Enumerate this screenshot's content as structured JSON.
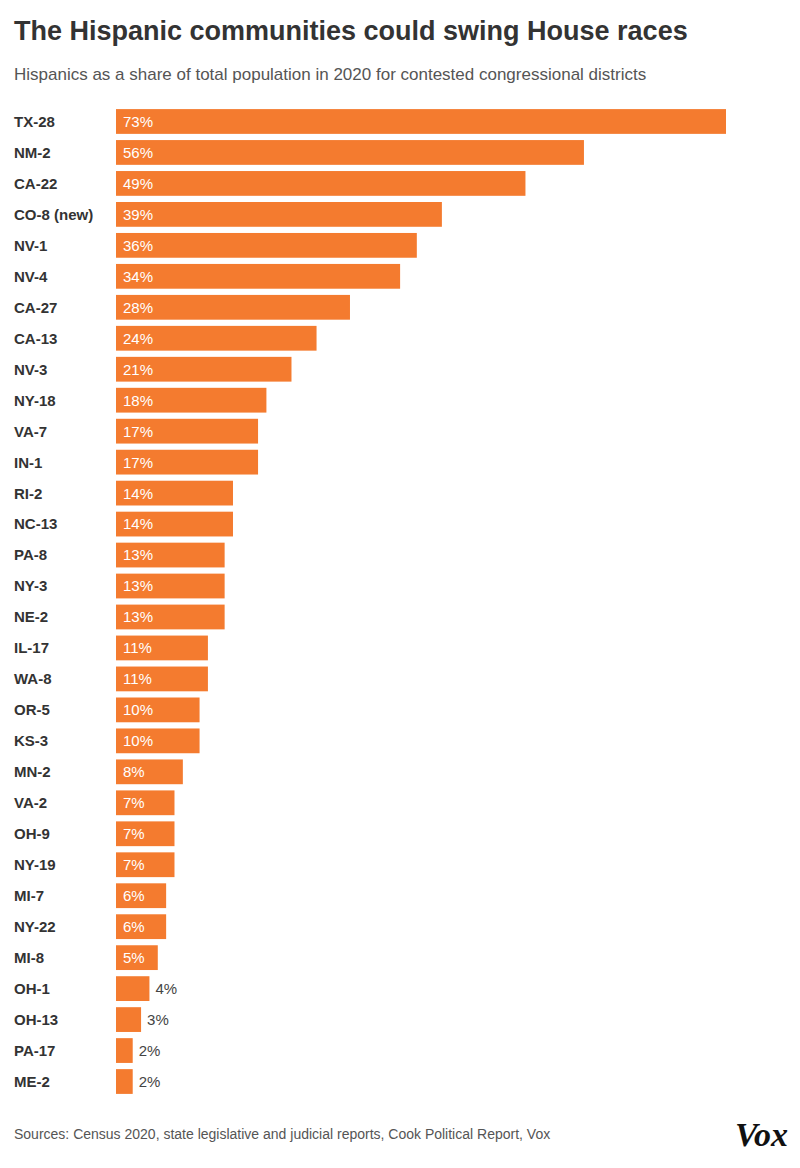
{
  "chart_data": {
    "type": "bar",
    "orientation": "horizontal",
    "title": "The Hispanic communities could swing House races",
    "subtitle": "Hispanics as a share of total population in 2020 for contested congressional districts",
    "categories": [
      "TX-28",
      "NM-2",
      "CA-22",
      "CO-8 (new)",
      "NV-1",
      "NV-4",
      "CA-27",
      "CA-13",
      "NV-3",
      "NY-18",
      "VA-7",
      "IN-1",
      "RI-2",
      "NC-13",
      "PA-8",
      "NY-3",
      "NE-2",
      "IL-17",
      "WA-8",
      "OR-5",
      "KS-3",
      "MN-2",
      "VA-2",
      "OH-9",
      "NY-19",
      "MI-7",
      "NY-22",
      "MI-8",
      "OH-1",
      "OH-13",
      "PA-17",
      "ME-2"
    ],
    "values": [
      73,
      56,
      49,
      39,
      36,
      34,
      28,
      24,
      21,
      18,
      17,
      17,
      14,
      14,
      13,
      13,
      13,
      11,
      11,
      10,
      10,
      8,
      7,
      7,
      7,
      6,
      6,
      5,
      4,
      3,
      2,
      2
    ],
    "value_labels": [
      "73%",
      "56%",
      "49%",
      "39%",
      "36%",
      "34%",
      "28%",
      "24%",
      "21%",
      "18%",
      "17%",
      "17%",
      "14%",
      "14%",
      "13%",
      "13%",
      "13%",
      "11%",
      "11%",
      "10%",
      "10%",
      "8%",
      "7%",
      "7%",
      "7%",
      "6%",
      "6%",
      "5%",
      "4%",
      "3%",
      "2%",
      "2%"
    ],
    "color": "#f47b2f",
    "data_labels": true,
    "tick_labels": false,
    "grid": false,
    "annotations": [
      "Sources: Census 2020, state legislative and judicial reports, Cook Political Report, Vox",
      "Vox"
    ]
  }
}
